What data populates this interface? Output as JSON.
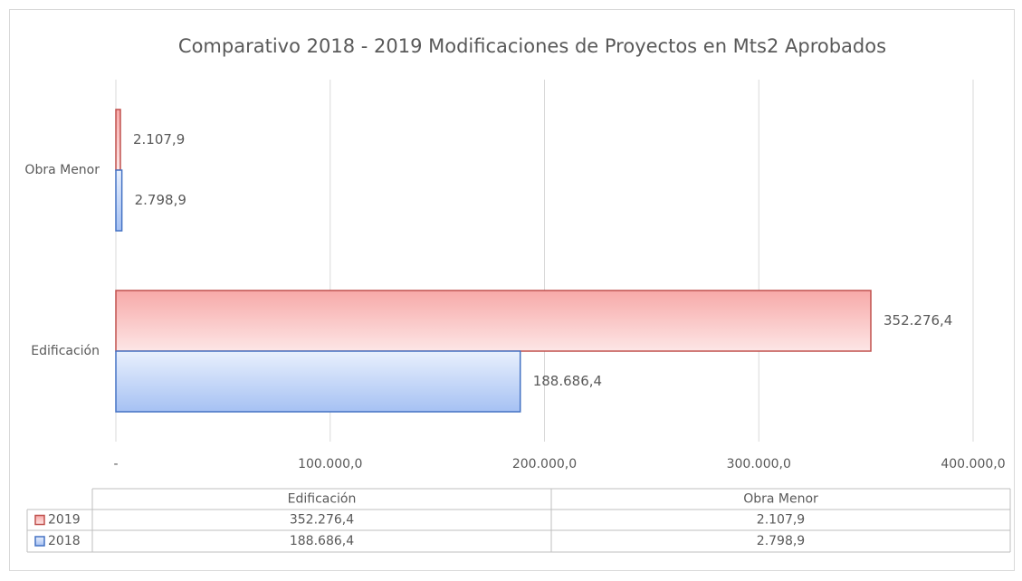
{
  "chart_data": {
    "type": "bar",
    "orientation": "horizontal",
    "title": "Comparativo  2018 - 2019 Modificaciones  de  Proyectos  en  Mts2 Aprobados",
    "categories": [
      "Edificación",
      "Obra Menor"
    ],
    "series": [
      {
        "name": "2019",
        "color": "#c0504d",
        "values": [
          352276.4,
          2107.9
        ],
        "value_labels": [
          "352.276,4",
          "2.107,9"
        ]
      },
      {
        "name": "2018",
        "color": "#4472c4",
        "values": [
          188686.4,
          2798.9
        ],
        "value_labels": [
          "188.686,4",
          "2.798,9"
        ]
      }
    ],
    "xlim": [
      0,
      400000
    ],
    "xticks": [
      {
        "value": 0,
        "label": "-"
      },
      {
        "value": 100000,
        "label": "100.000,0"
      },
      {
        "value": 200000,
        "label": "200.000,0"
      },
      {
        "value": 300000,
        "label": "300.000,0"
      },
      {
        "value": 400000,
        "label": "400.000,0"
      }
    ],
    "grid": true,
    "data_table": true
  }
}
